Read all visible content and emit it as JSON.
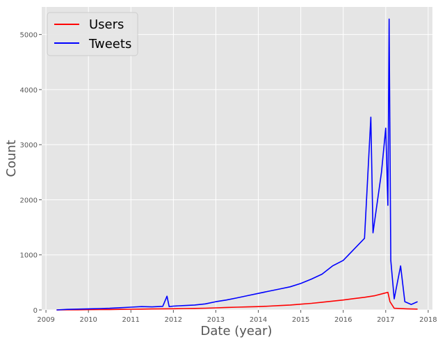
{
  "chart_data": {
    "type": "line",
    "title": "",
    "xlabel": "Date (year)",
    "ylabel": "Count",
    "x_ticks": [
      "2009",
      "2010",
      "2011",
      "2012",
      "2013",
      "2014",
      "2015",
      "2016",
      "2017",
      "2018"
    ],
    "y_ticks": [
      "0",
      "1000",
      "2000",
      "3000",
      "4000",
      "5000"
    ],
    "xlim": [
      2008.9,
      2018.1
    ],
    "ylim": [
      0,
      5500
    ],
    "grid": true,
    "legend_position": "top-left",
    "series": [
      {
        "name": "Users",
        "color": "#ff0000",
        "points": [
          [
            2009.25,
            0
          ],
          [
            2009.5,
            2
          ],
          [
            2009.75,
            3
          ],
          [
            2010.0,
            5
          ],
          [
            2010.25,
            6
          ],
          [
            2010.5,
            8
          ],
          [
            2010.75,
            10
          ],
          [
            2011.0,
            12
          ],
          [
            2011.25,
            15
          ],
          [
            2011.5,
            18
          ],
          [
            2011.75,
            20
          ],
          [
            2012.0,
            22
          ],
          [
            2012.25,
            25
          ],
          [
            2012.5,
            28
          ],
          [
            2012.75,
            32
          ],
          [
            2013.0,
            38
          ],
          [
            2013.25,
            45
          ],
          [
            2013.5,
            50
          ],
          [
            2013.75,
            55
          ],
          [
            2014.0,
            60
          ],
          [
            2014.25,
            70
          ],
          [
            2014.5,
            80
          ],
          [
            2014.75,
            90
          ],
          [
            2015.0,
            105
          ],
          [
            2015.25,
            120
          ],
          [
            2015.5,
            140
          ],
          [
            2015.75,
            160
          ],
          [
            2016.0,
            180
          ],
          [
            2016.25,
            205
          ],
          [
            2016.5,
            230
          ],
          [
            2016.75,
            260
          ],
          [
            2016.95,
            300
          ],
          [
            2017.05,
            320
          ],
          [
            2017.1,
            150
          ],
          [
            2017.2,
            30
          ],
          [
            2017.5,
            20
          ],
          [
            2017.75,
            15
          ]
        ]
      },
      {
        "name": "Tweets",
        "color": "#0000ff",
        "points": [
          [
            2009.25,
            0
          ],
          [
            2009.5,
            10
          ],
          [
            2009.75,
            15
          ],
          [
            2010.0,
            20
          ],
          [
            2010.25,
            25
          ],
          [
            2010.5,
            30
          ],
          [
            2010.75,
            40
          ],
          [
            2011.0,
            50
          ],
          [
            2011.25,
            60
          ],
          [
            2011.5,
            55
          ],
          [
            2011.75,
            65
          ],
          [
            2011.85,
            250
          ],
          [
            2011.9,
            60
          ],
          [
            2012.0,
            70
          ],
          [
            2012.25,
            80
          ],
          [
            2012.5,
            90
          ],
          [
            2012.75,
            110
          ],
          [
            2013.0,
            150
          ],
          [
            2013.25,
            180
          ],
          [
            2013.5,
            220
          ],
          [
            2013.75,
            260
          ],
          [
            2014.0,
            300
          ],
          [
            2014.25,
            340
          ],
          [
            2014.5,
            380
          ],
          [
            2014.75,
            420
          ],
          [
            2015.0,
            480
          ],
          [
            2015.25,
            560
          ],
          [
            2015.5,
            650
          ],
          [
            2015.75,
            800
          ],
          [
            2016.0,
            900
          ],
          [
            2016.25,
            1100
          ],
          [
            2016.5,
            1300
          ],
          [
            2016.65,
            3500
          ],
          [
            2016.7,
            1400
          ],
          [
            2016.9,
            2500
          ],
          [
            2017.0,
            3300
          ],
          [
            2017.05,
            1900
          ],
          [
            2017.08,
            5280
          ],
          [
            2017.12,
            900
          ],
          [
            2017.2,
            200
          ],
          [
            2017.35,
            800
          ],
          [
            2017.45,
            150
          ],
          [
            2017.6,
            100
          ],
          [
            2017.75,
            150
          ]
        ]
      }
    ]
  }
}
